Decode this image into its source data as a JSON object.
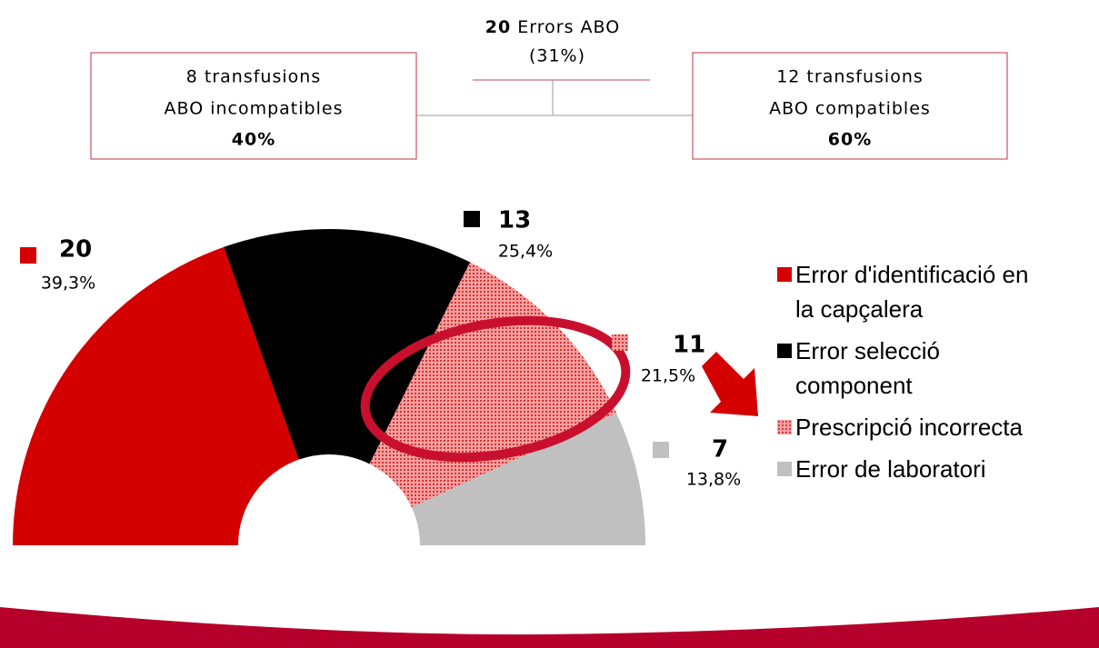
{
  "tree": {
    "root": {
      "count": "20",
      "label": "Errors ABO",
      "share": "(31%)"
    },
    "left": {
      "lines": [
        "8 transfusions",
        "ABO incompatibles"
      ],
      "share": "40%"
    },
    "right": {
      "lines": [
        "12 transfusions",
        "ABO compatibles"
      ],
      "share": "60%"
    }
  },
  "chart_data": {
    "type": "half-donut",
    "categories": [
      "Error d'identificació en la capçalera",
      "Error selecció component",
      "Prescripció incorrecta",
      "Error de laboratori"
    ],
    "values": [
      20,
      13,
      11,
      7
    ],
    "percents": [
      39.3,
      25.4,
      21.5,
      13.8
    ],
    "percent_labels": [
      "39,3%",
      "25,4%",
      "21,5%",
      "13,8%"
    ],
    "colors": [
      "#d40000",
      "#000000",
      "#f08a8a",
      "#c0c0c0"
    ]
  }
}
